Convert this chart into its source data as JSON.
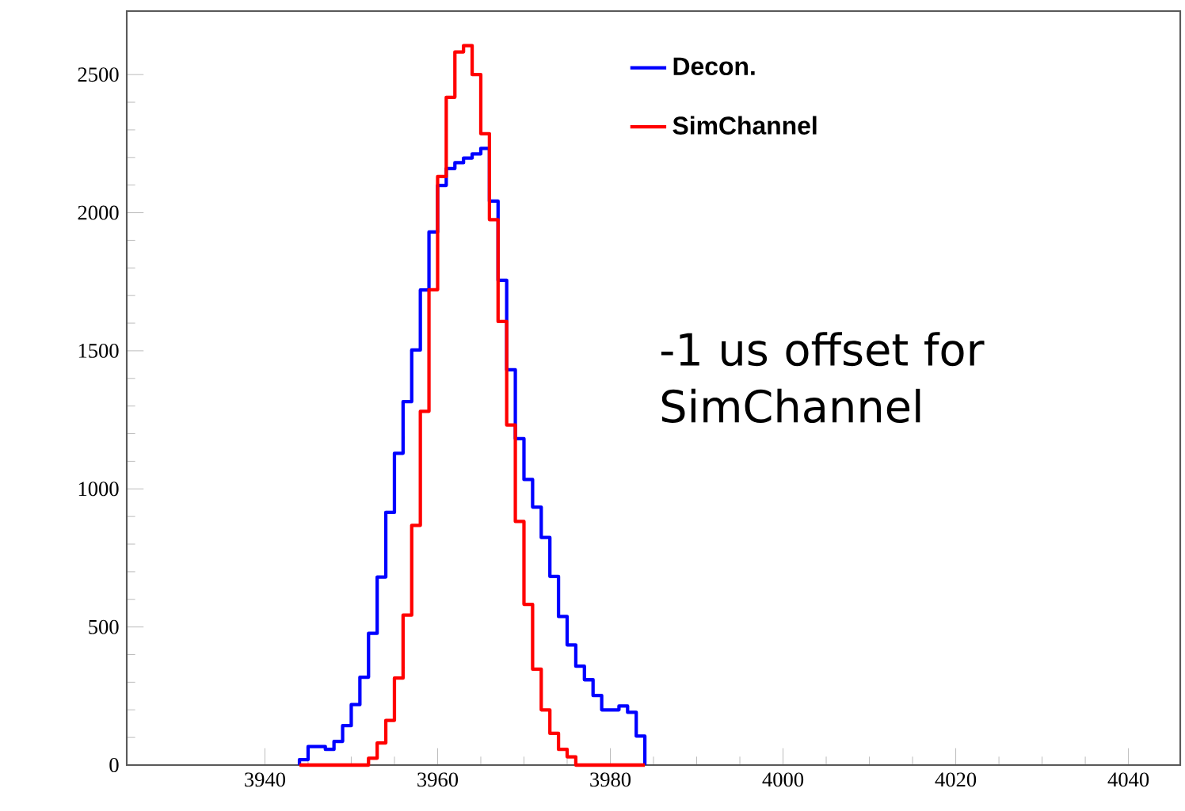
{
  "chart_data": {
    "type": "histogram",
    "bins": [
      3944,
      3945,
      3946,
      3947,
      3948,
      3949,
      3950,
      3951,
      3952,
      3953,
      3954,
      3955,
      3956,
      3957,
      3958,
      3959,
      3960,
      3961,
      3962,
      3963,
      3964,
      3965,
      3966,
      3967,
      3968,
      3969,
      3970,
      3971,
      3972,
      3973,
      3974,
      3975,
      3976,
      3977,
      3978,
      3979,
      3980,
      3981,
      3982,
      3983,
      3984
    ],
    "series": [
      {
        "name": "Decon.",
        "color": "#0000ff",
        "values": [
          20,
          67,
          67,
          57,
          86,
          143,
          219,
          318,
          477,
          681,
          915,
          1129,
          1316,
          1503,
          1720,
          1930,
          2099,
          2160,
          2181,
          2198,
          2213,
          2233,
          2042,
          1755,
          1431,
          1182,
          1034,
          934,
          824,
          683,
          538,
          435,
          358,
          309,
          252,
          200,
          200,
          214,
          191,
          105
        ]
      },
      {
        "name": "SimChannel",
        "color": "#ff0000",
        "values": [
          0,
          0,
          0,
          0,
          0,
          0,
          0,
          0,
          25,
          80,
          162,
          315,
          543,
          868,
          1281,
          1721,
          2131,
          2418,
          2582,
          2605,
          2500,
          2286,
          1975,
          1606,
          1231,
          882,
          582,
          347,
          200,
          115,
          57,
          30,
          0,
          0,
          0,
          0,
          0,
          0,
          0,
          0
        ]
      }
    ],
    "xlim": [
      3924,
      4046
    ],
    "ylim": [
      0,
      2730
    ],
    "xticks": [
      3940,
      3960,
      3980,
      4000,
      4020,
      4040
    ],
    "yticks": [
      0,
      500,
      1000,
      1500,
      2000,
      2500
    ],
    "legend": "top right",
    "annotations": [
      "-1 us offset for SimChannel"
    ]
  }
}
